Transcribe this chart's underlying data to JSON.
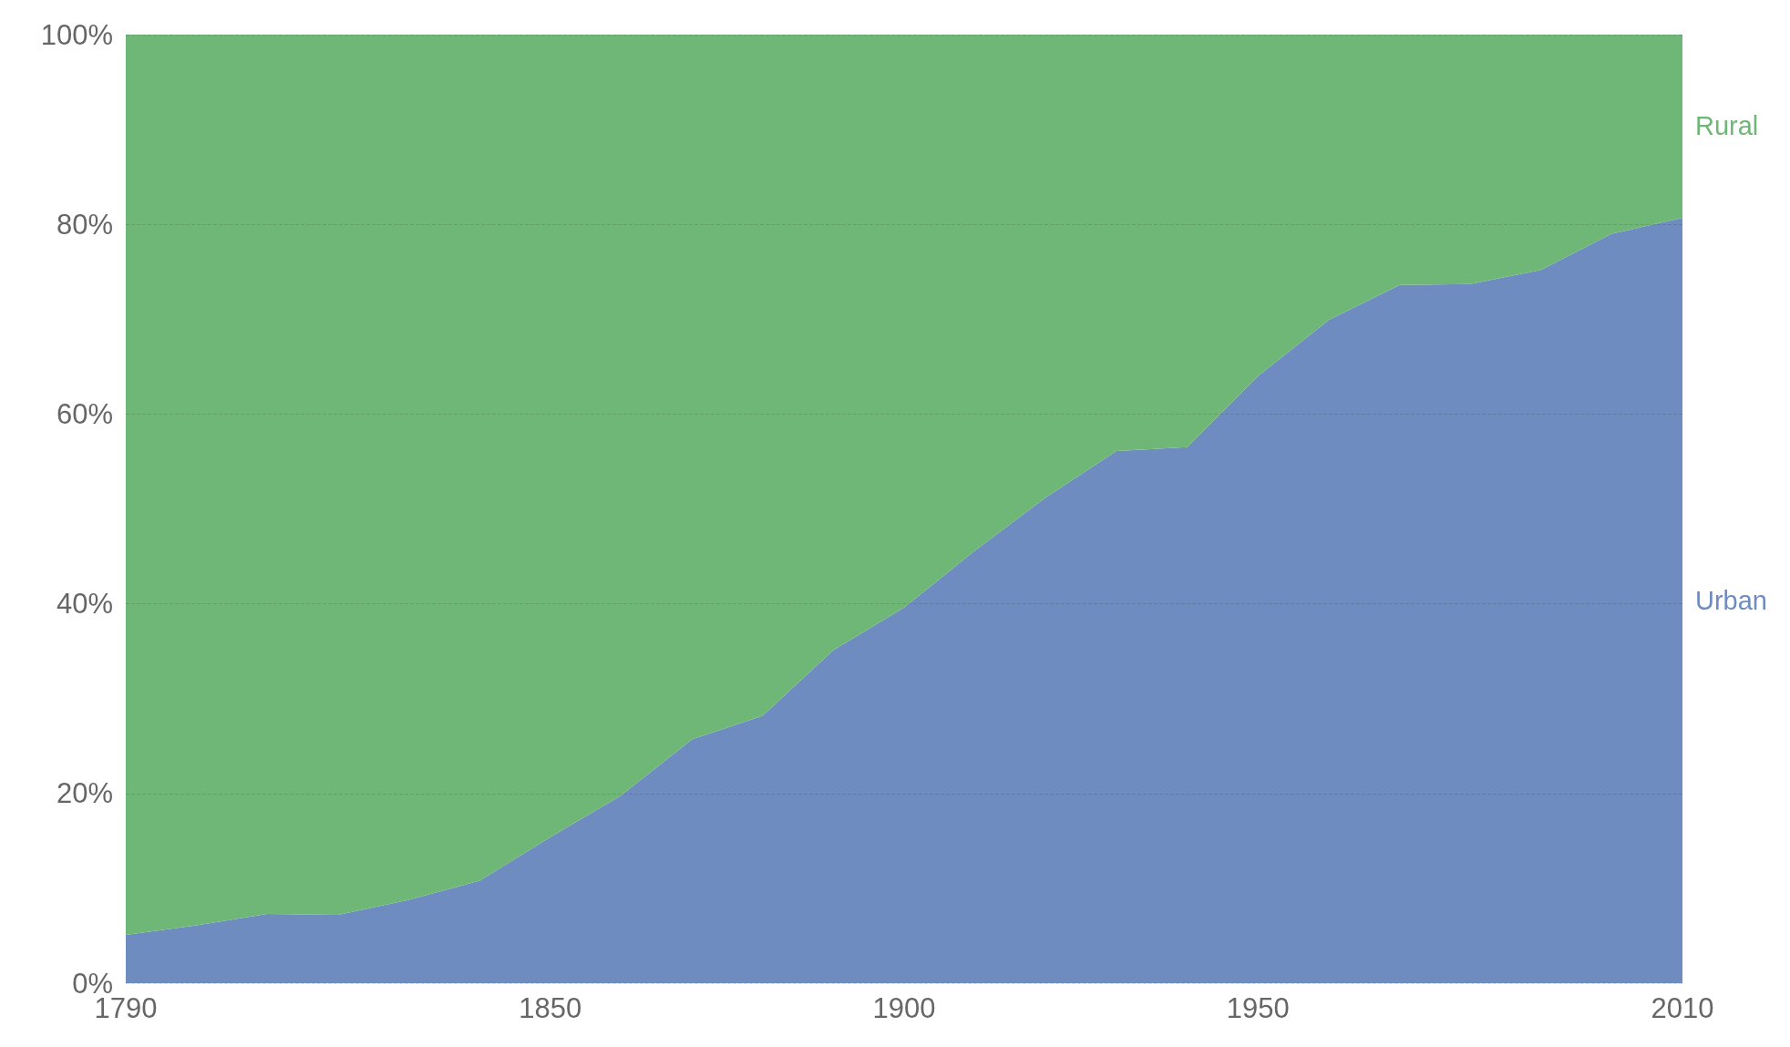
{
  "chart_data": {
    "type": "area",
    "stacked": true,
    "x": [
      1790,
      1800,
      1810,
      1820,
      1830,
      1840,
      1850,
      1860,
      1870,
      1880,
      1890,
      1900,
      1910,
      1920,
      1930,
      1940,
      1950,
      1960,
      1970,
      1980,
      1990,
      2000,
      2010
    ],
    "series": [
      {
        "name": "Urban",
        "color": "#6e8cc0",
        "values": [
          5.1,
          6.1,
          7.3,
          7.2,
          8.8,
          10.8,
          15.4,
          19.8,
          25.7,
          28.2,
          35.1,
          39.6,
          45.6,
          51.2,
          56.1,
          56.5,
          64.0,
          69.9,
          73.6,
          73.7,
          75.2,
          79.0,
          80.7
        ]
      },
      {
        "name": "Rural",
        "color": "#6fb777",
        "values": [
          94.9,
          93.9,
          92.7,
          92.8,
          91.2,
          89.2,
          84.6,
          80.2,
          74.3,
          71.8,
          64.9,
          60.4,
          54.4,
          48.8,
          43.9,
          43.5,
          36.0,
          30.1,
          26.4,
          26.3,
          24.8,
          21.0,
          19.3
        ]
      }
    ],
    "xlim": [
      1790,
      2010
    ],
    "xticks": [
      1790,
      1850,
      1900,
      1950,
      2010
    ],
    "ylim": [
      0,
      100
    ],
    "yticks": [
      {
        "value": 0,
        "label": "0%"
      },
      {
        "value": 20,
        "label": "20%"
      },
      {
        "value": 40,
        "label": "40%"
      },
      {
        "value": 60,
        "label": "60%"
      },
      {
        "value": 80,
        "label": "80%"
      },
      {
        "value": 100,
        "label": "100%"
      }
    ],
    "grid": "y",
    "line_style": "dashed"
  }
}
